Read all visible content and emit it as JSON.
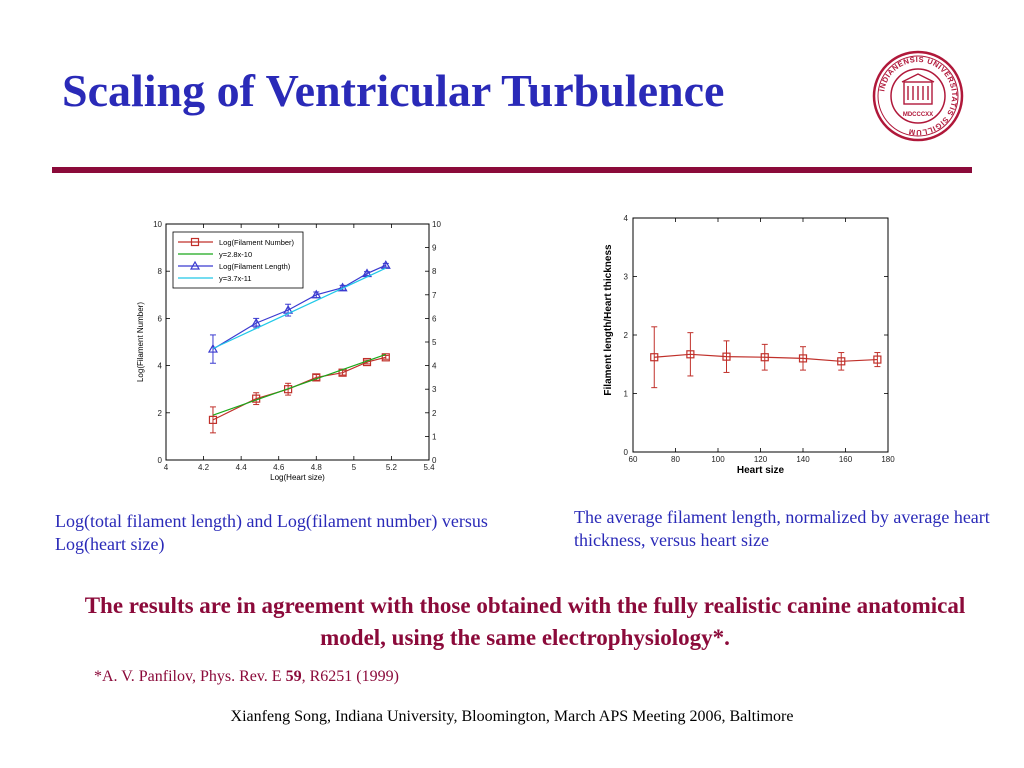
{
  "slide": {
    "title": "Scaling of Ventricular Turbulence",
    "caption_left": "Log(total filament length) and Log(filament number) versus Log(heart size)",
    "caption_right": "The average filament length, normalized by average heart thickness, versus heart size",
    "conclusion": "The results are in agreement with those obtained with the fully realistic canine anatomical model, using the same electrophysiology*.",
    "reference": {
      "prefix": "*A. V. Panfilov, Phys. Rev. E ",
      "volume": "59",
      "suffix": ", R6251 (1999)"
    },
    "footer": "Xianfeng Song, Indiana University, Bloomington, March APS Meeting 2006, Baltimore"
  },
  "seal": {
    "ring_text": "INDIANENSIS UNIVERSITATIS SIGILLUM",
    "year_text": "MDCCCXX",
    "color": "#b0183a"
  },
  "colors": {
    "title": "#2a2ab8",
    "rule": "#8b0a3a",
    "conclusion": "#8b0a3a",
    "series_red": "#c0302a",
    "series_green": "#1aa81a",
    "series_blue": "#3a3ad0",
    "series_cyan": "#20c8e8"
  },
  "chart_data": [
    {
      "type": "line",
      "xlabel": "Log(Heart size)",
      "ylabel": "Log(Filament Number)",
      "ylabel_right": "Log(Filament Length)",
      "xlim": [
        4,
        5.4
      ],
      "ylim": [
        0,
        10
      ],
      "x_ticks": [
        "4",
        "4.2",
        "4.4",
        "4.6",
        "4.8",
        "5",
        "5.2",
        "5.4"
      ],
      "y_ticks": [
        "0",
        "2",
        "4",
        "6",
        "8",
        "10"
      ],
      "y_ticks_right": [
        "0",
        "1",
        "2",
        "3",
        "4",
        "5",
        "6",
        "7",
        "8",
        "9",
        "10"
      ],
      "grid": false,
      "legend_position": "top-left",
      "series": [
        {
          "name": "Log(Filament Number)",
          "marker": "square",
          "color": "#c0302a",
          "x": [
            4.25,
            4.48,
            4.65,
            4.8,
            4.94,
            5.07,
            5.17
          ],
          "y": [
            1.7,
            2.6,
            3.0,
            3.5,
            3.7,
            4.15,
            4.35
          ],
          "err": [
            0.55,
            0.25,
            0.25,
            0.12,
            0.1,
            0.08,
            0.08
          ]
        },
        {
          "name": "y=2.8x-10",
          "marker": "none",
          "color": "#1aa81a",
          "x": [
            4.25,
            5.17
          ],
          "y": [
            1.9,
            4.476
          ]
        },
        {
          "name": "Log(Filament Length)",
          "marker": "triangle",
          "color": "#3a3ad0",
          "x": [
            4.25,
            4.48,
            4.65,
            4.8,
            4.94,
            5.07,
            5.17
          ],
          "y": [
            4.7,
            5.8,
            6.35,
            7.0,
            7.3,
            7.9,
            8.25
          ],
          "err": [
            0.6,
            0.2,
            0.25,
            0.12,
            0.1,
            0.08,
            0.08
          ]
        },
        {
          "name": "y=3.7x-11",
          "marker": "none",
          "color": "#20c8e8",
          "x": [
            4.25,
            5.17
          ],
          "y": [
            4.725,
            8.129
          ]
        }
      ]
    },
    {
      "type": "line",
      "xlabel": "Heart size",
      "ylabel": "Filament length/Heart thickness",
      "xlim": [
        60,
        180
      ],
      "ylim": [
        0,
        4
      ],
      "x_ticks": [
        "60",
        "80",
        "100",
        "120",
        "140",
        "160",
        "180"
      ],
      "y_ticks": [
        "0",
        "1",
        "2",
        "3",
        "4"
      ],
      "grid": false,
      "series": [
        {
          "marker": "square",
          "color": "#c0302a",
          "x": [
            70,
            87,
            104,
            122,
            140,
            158,
            175
          ],
          "y": [
            1.62,
            1.67,
            1.63,
            1.62,
            1.6,
            1.55,
            1.58
          ],
          "err": [
            0.52,
            0.37,
            0.27,
            0.22,
            0.2,
            0.15,
            0.12
          ]
        }
      ]
    }
  ]
}
